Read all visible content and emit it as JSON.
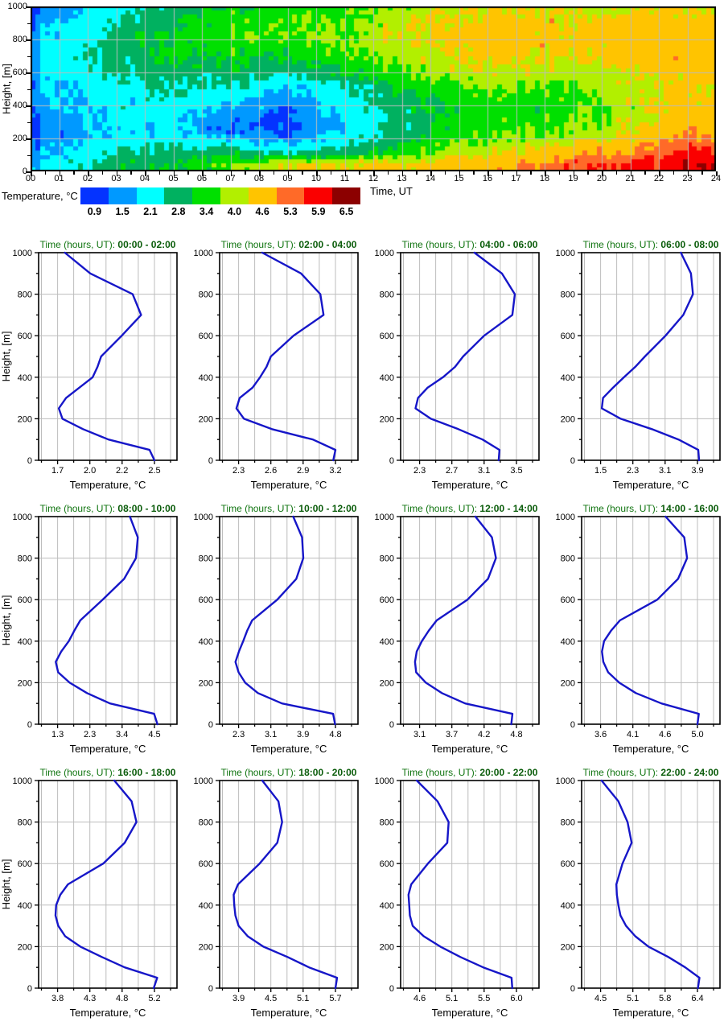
{
  "colors": {
    "line": "#1616c8",
    "grid": "#bdbdbd",
    "frame": "#000000",
    "title_prefix_color": "#117511",
    "title_range_color": "#0a5c0a"
  },
  "chart_data": {
    "heatmap": {
      "type": "heatmap",
      "xlabel": "Time, UT",
      "ylabel": "Height, [m]",
      "x_range": [
        0,
        24
      ],
      "y_range": [
        0,
        1000
      ],
      "x_tick_labels": [
        "00",
        "01",
        "02",
        "03",
        "04",
        "05",
        "06",
        "07",
        "08",
        "09",
        "10",
        "11",
        "12",
        "13",
        "14",
        "15",
        "16",
        "17",
        "18",
        "19",
        "20",
        "21",
        "22",
        "23",
        "24"
      ],
      "y_ticks": [
        0,
        200,
        400,
        600,
        800,
        1000
      ],
      "colorbar": {
        "label": "Temperature, °C",
        "tick_labels": [
          "0.9",
          "1.5",
          "2.1",
          "2.8",
          "3.4",
          "4.0",
          "4.6",
          "5.3",
          "5.9",
          "6.5"
        ],
        "levels": [
          0.9,
          1.5,
          2.1,
          2.8,
          3.4,
          4.0,
          4.6,
          5.3,
          5.9,
          6.5
        ],
        "colors": [
          "#0433ff",
          "#0099ff",
          "#00ffff",
          "#00b160",
          "#00e000",
          "#b2ef00",
          "#ffc400",
          "#ff6a28",
          "#fa0000",
          "#8c0000"
        ]
      }
    },
    "profiles": {
      "type": "line",
      "xlabel": "Temperature, °C",
      "ylabel": "Height, [m]",
      "title_prefix": "Time (hours, UT):",
      "y_ticks": [
        0,
        200,
        400,
        600,
        800,
        1000
      ],
      "heights": [
        0,
        50,
        100,
        150,
        200,
        250,
        300,
        350,
        400,
        450,
        500,
        600,
        700,
        800,
        900,
        1000
      ],
      "panels": [
        {
          "time_range": "00:00 - 02:00",
          "x_ticks": [
            "1.7",
            "2.0",
            "2.2",
            "2.5"
          ],
          "temps": [
            2.5,
            2.46,
            2.12,
            1.91,
            1.74,
            1.71,
            1.77,
            1.88,
            1.99,
            2.03,
            2.06,
            2.23,
            2.39,
            2.32,
            1.97,
            1.76
          ]
        },
        {
          "time_range": "02:00 - 04:00",
          "x_ticks": [
            "2.3",
            "2.6",
            "2.9",
            "3.2"
          ],
          "temps": [
            3.18,
            3.2,
            2.99,
            2.61,
            2.35,
            2.28,
            2.31,
            2.43,
            2.5,
            2.56,
            2.6,
            2.81,
            3.09,
            3.06,
            2.88,
            2.52
          ]
        },
        {
          "time_range": "04:00 - 06:00",
          "x_ticks": [
            "2.3",
            "2.7",
            "3.1",
            "3.5"
          ],
          "temps": [
            3.28,
            3.29,
            3.08,
            2.78,
            2.44,
            2.25,
            2.28,
            2.4,
            2.59,
            2.74,
            2.84,
            3.1,
            3.45,
            3.48,
            3.32,
            2.98
          ]
        },
        {
          "time_range": "06:00 - 08:00",
          "x_ticks": [
            "1.5",
            "2.3",
            "3.1",
            "3.9"
          ],
          "temps": [
            3.94,
            3.92,
            3.43,
            2.77,
            2.0,
            1.53,
            1.56,
            1.81,
            2.08,
            2.36,
            2.6,
            3.11,
            3.55,
            3.79,
            3.74,
            3.49
          ]
        },
        {
          "time_range": "08:00 - 10:00",
          "x_ticks": [
            "1.3",
            "2.3",
            "3.4",
            "4.5"
          ],
          "temps": [
            4.6,
            4.49,
            3.03,
            2.27,
            1.7,
            1.32,
            1.24,
            1.42,
            1.67,
            1.85,
            2.05,
            2.79,
            3.5,
            3.89,
            3.95,
            3.69
          ]
        },
        {
          "time_range": "10:00 - 12:00",
          "x_ticks": [
            "2.3",
            "3.1",
            "3.9",
            "4.8"
          ],
          "temps": [
            4.79,
            4.74,
            3.42,
            2.8,
            2.47,
            2.3,
            2.22,
            2.31,
            2.42,
            2.52,
            2.65,
            3.3,
            3.79,
            3.97,
            3.94,
            3.71
          ]
        },
        {
          "time_range": "12:00 - 14:00",
          "x_ticks": [
            "3.1",
            "3.7",
            "4.2",
            "4.8"
          ],
          "temps": [
            4.71,
            4.73,
            3.9,
            3.49,
            3.21,
            3.04,
            3.02,
            3.05,
            3.14,
            3.26,
            3.4,
            3.94,
            4.3,
            4.44,
            4.37,
            4.08
          ]
        },
        {
          "time_range": "14:00 - 16:00",
          "x_ticks": [
            "3.6",
            "4.1",
            "4.6",
            "5.0"
          ],
          "temps": [
            5.0,
            5.02,
            4.48,
            4.11,
            3.87,
            3.71,
            3.64,
            3.62,
            3.65,
            3.75,
            3.88,
            4.42,
            4.72,
            4.85,
            4.81,
            4.54
          ]
        },
        {
          "time_range": "16:00 - 18:00",
          "x_ticks": [
            "3.8",
            "4.3",
            "4.8",
            "5.2"
          ],
          "temps": [
            5.19,
            5.24,
            4.77,
            4.44,
            4.13,
            3.91,
            3.81,
            3.77,
            3.78,
            3.84,
            3.95,
            4.46,
            4.77,
            4.94,
            4.87,
            4.62
          ]
        },
        {
          "time_range": "18:00 - 20:00",
          "x_ticks": [
            "3.9",
            "4.5",
            "5.1",
            "5.7"
          ],
          "temps": [
            5.7,
            5.73,
            5.21,
            4.81,
            4.36,
            4.07,
            3.9,
            3.84,
            3.82,
            3.81,
            3.89,
            4.29,
            4.62,
            4.71,
            4.64,
            4.34
          ]
        },
        {
          "time_range": "20:00 - 22:00",
          "x_ticks": [
            "4.6",
            "5.1",
            "5.5",
            "6.0"
          ],
          "temps": [
            5.94,
            5.93,
            5.52,
            5.19,
            4.9,
            4.66,
            4.5,
            4.46,
            4.45,
            4.44,
            4.48,
            4.72,
            5.0,
            5.02,
            4.86,
            4.56
          ]
        },
        {
          "time_range": "22:00 - 24:00",
          "x_ticks": [
            "4.5",
            "5.1",
            "5.8",
            "6.4"
          ],
          "temps": [
            6.41,
            6.44,
            6.16,
            5.83,
            5.44,
            5.18,
            5.0,
            4.89,
            4.85,
            4.82,
            4.81,
            4.93,
            5.11,
            5.03,
            4.85,
            4.52
          ]
        }
      ]
    }
  }
}
